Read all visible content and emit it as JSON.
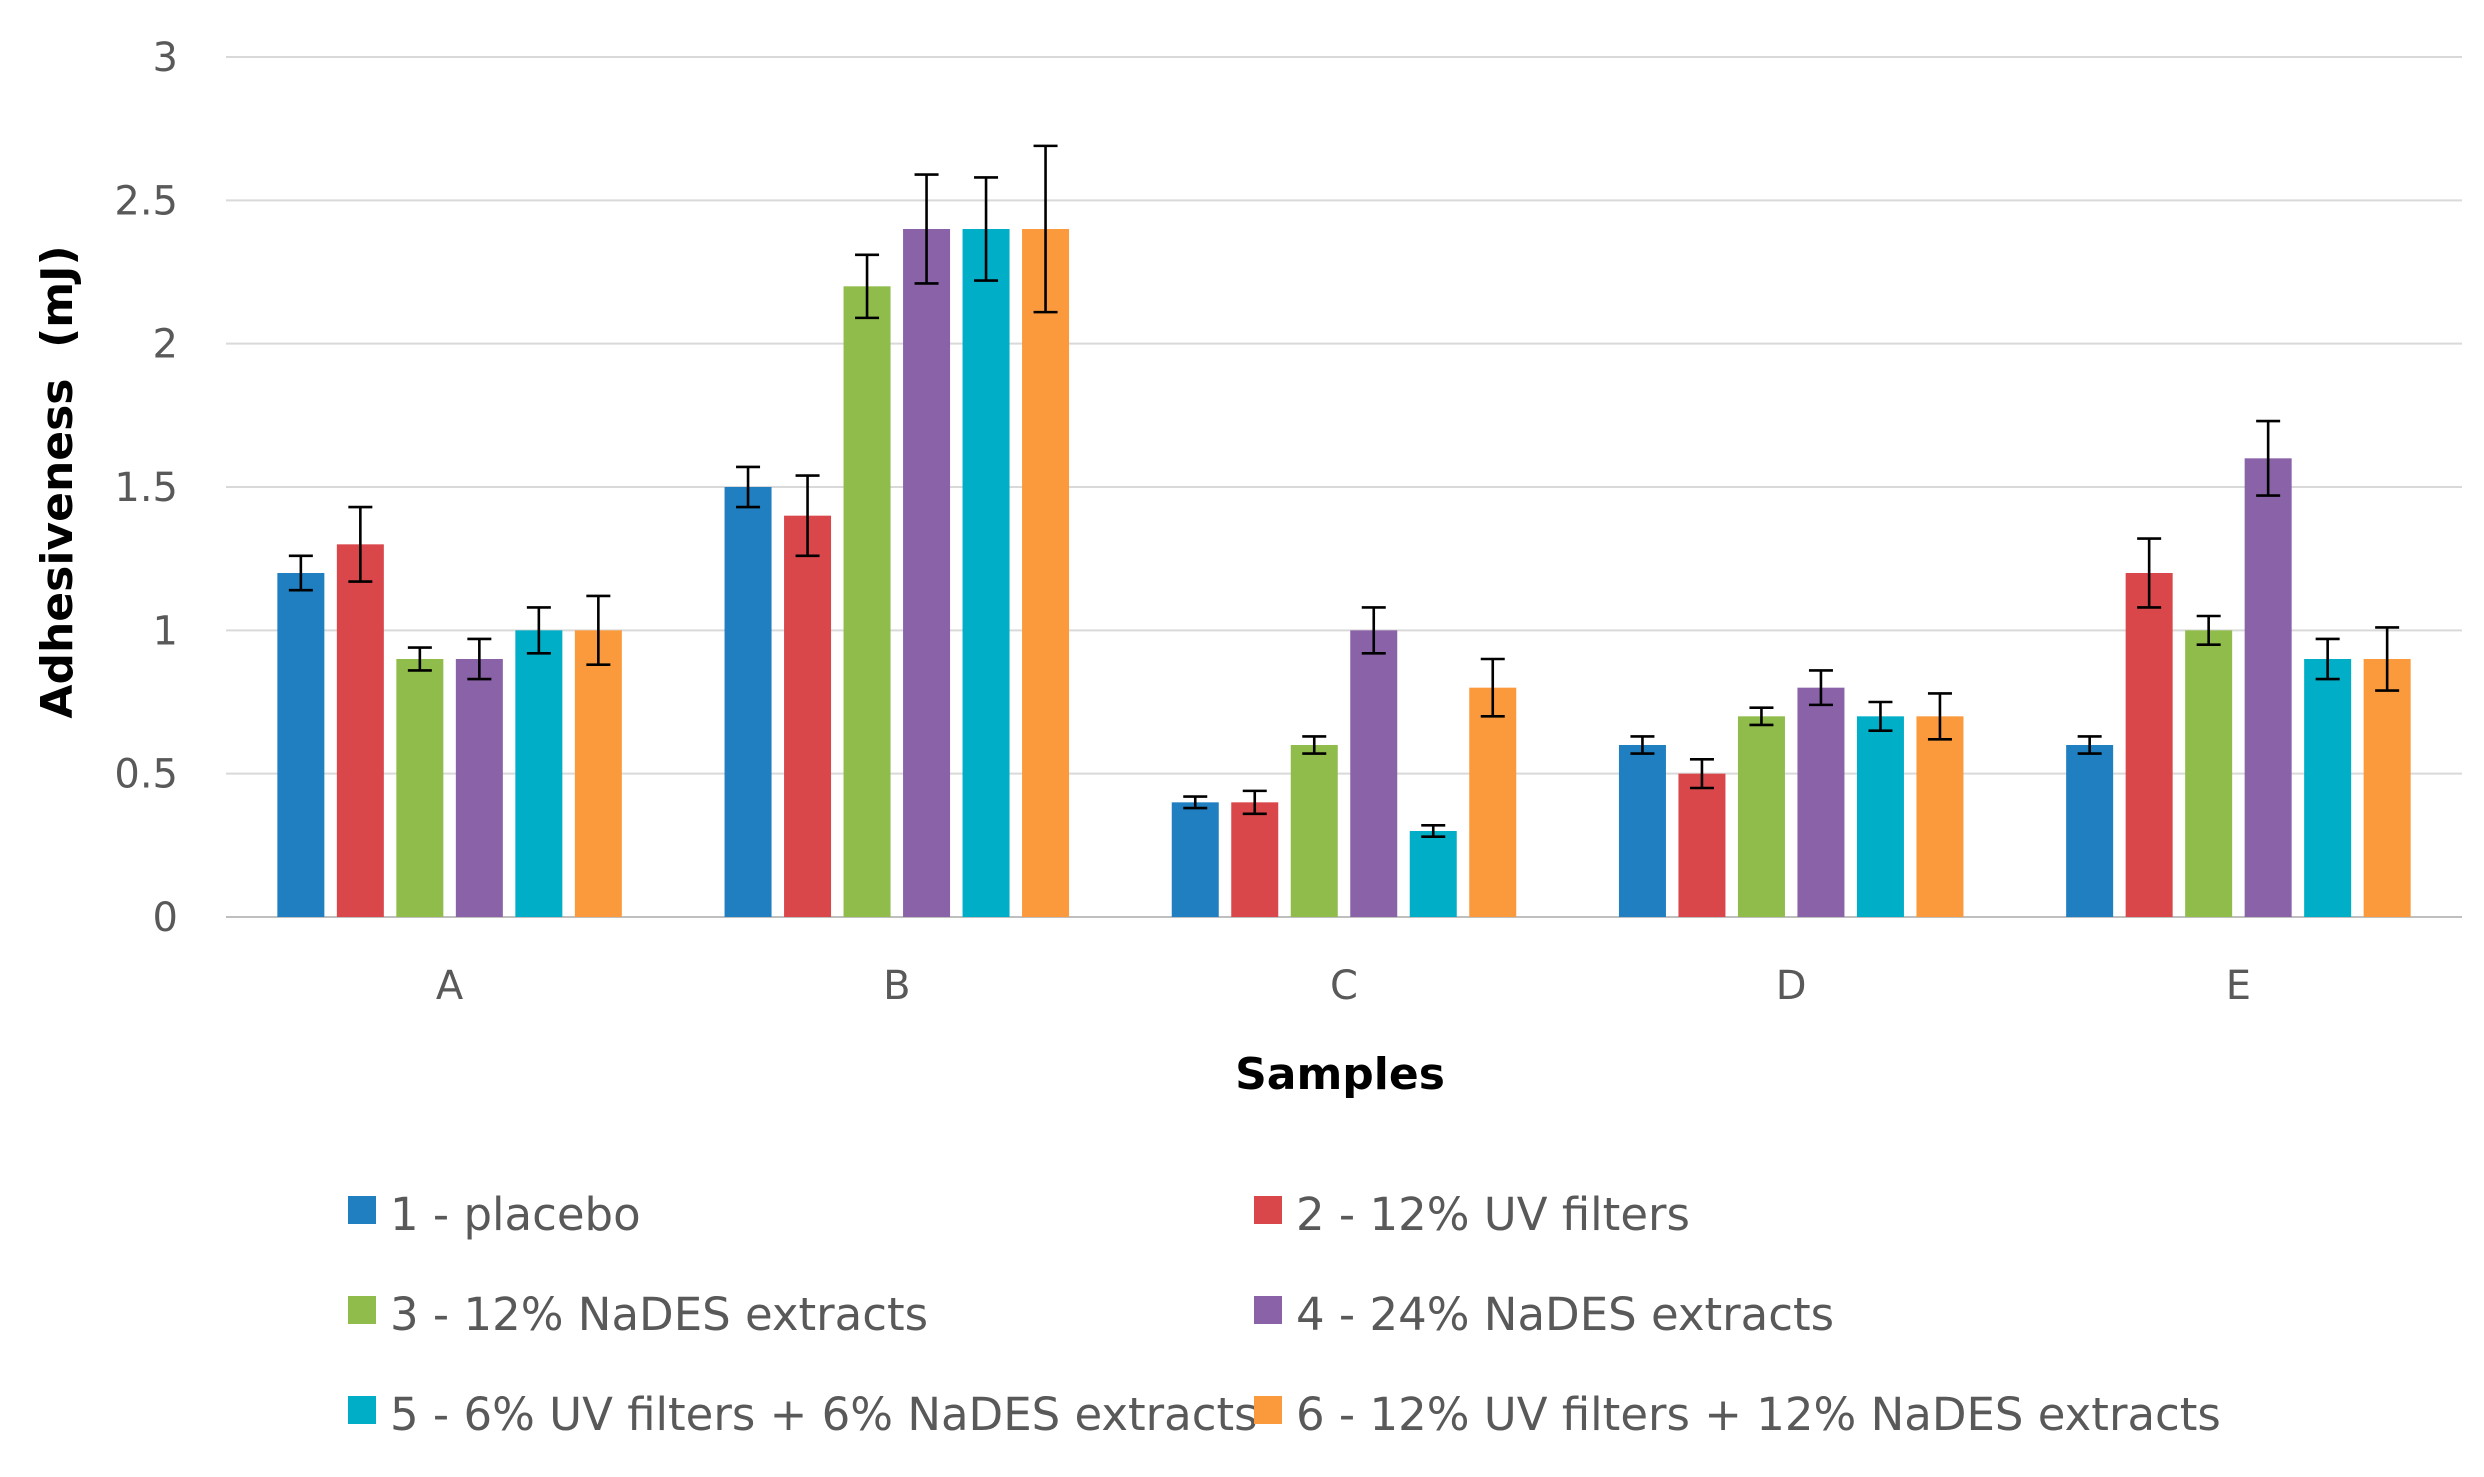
{
  "chart_data": {
    "type": "bar",
    "title": "",
    "xlabel": "Samples",
    "ylabel": "Adhesiveness  (mJ)",
    "ylim": [
      0,
      3
    ],
    "yticks": [
      0,
      0.5,
      1,
      1.5,
      2,
      2.5,
      3
    ],
    "ytick_labels": [
      "0",
      "0.5",
      "1",
      "1.5",
      "2",
      "2.5",
      "3"
    ],
    "grid": true,
    "legend_position": "bottom",
    "categories": [
      "A",
      "B",
      "C",
      "D",
      "E"
    ],
    "series": [
      {
        "name": "1 - placebo",
        "color": "#1f7fc1",
        "values": [
          1.2,
          1.5,
          0.4,
          0.6,
          0.6
        ],
        "errors": [
          0.06,
          0.07,
          0.02,
          0.03,
          0.03
        ]
      },
      {
        "name": "2 - 12% UV filters",
        "color": "#d9474b",
        "values": [
          1.3,
          1.4,
          0.4,
          0.5,
          1.2
        ],
        "errors": [
          0.13,
          0.14,
          0.04,
          0.05,
          0.12
        ]
      },
      {
        "name": "3 - 12% NaDES extracts",
        "color": "#8fbc4a",
        "values": [
          0.9,
          2.2,
          0.6,
          0.7,
          1.0
        ],
        "errors": [
          0.04,
          0.11,
          0.03,
          0.03,
          0.05
        ]
      },
      {
        "name": "4 - 24% NaDES extracts",
        "color": "#8a62a8",
        "values": [
          0.9,
          2.4,
          1.0,
          0.8,
          1.6
        ],
        "errors": [
          0.07,
          0.19,
          0.08,
          0.06,
          0.13
        ]
      },
      {
        "name": "5 - 6% UV filters + 6% NaDES extracts",
        "color": "#00aec7",
        "values": [
          1.0,
          2.4,
          0.3,
          0.7,
          0.9
        ],
        "errors": [
          0.08,
          0.18,
          0.02,
          0.05,
          0.07
        ]
      },
      {
        "name": "6 - 12% UV filters + 12% NaDES extracts",
        "color": "#fb9a3c",
        "values": [
          1.0,
          2.4,
          0.8,
          0.7,
          0.9
        ],
        "errors": [
          0.12,
          0.29,
          0.1,
          0.08,
          0.11
        ]
      }
    ]
  }
}
